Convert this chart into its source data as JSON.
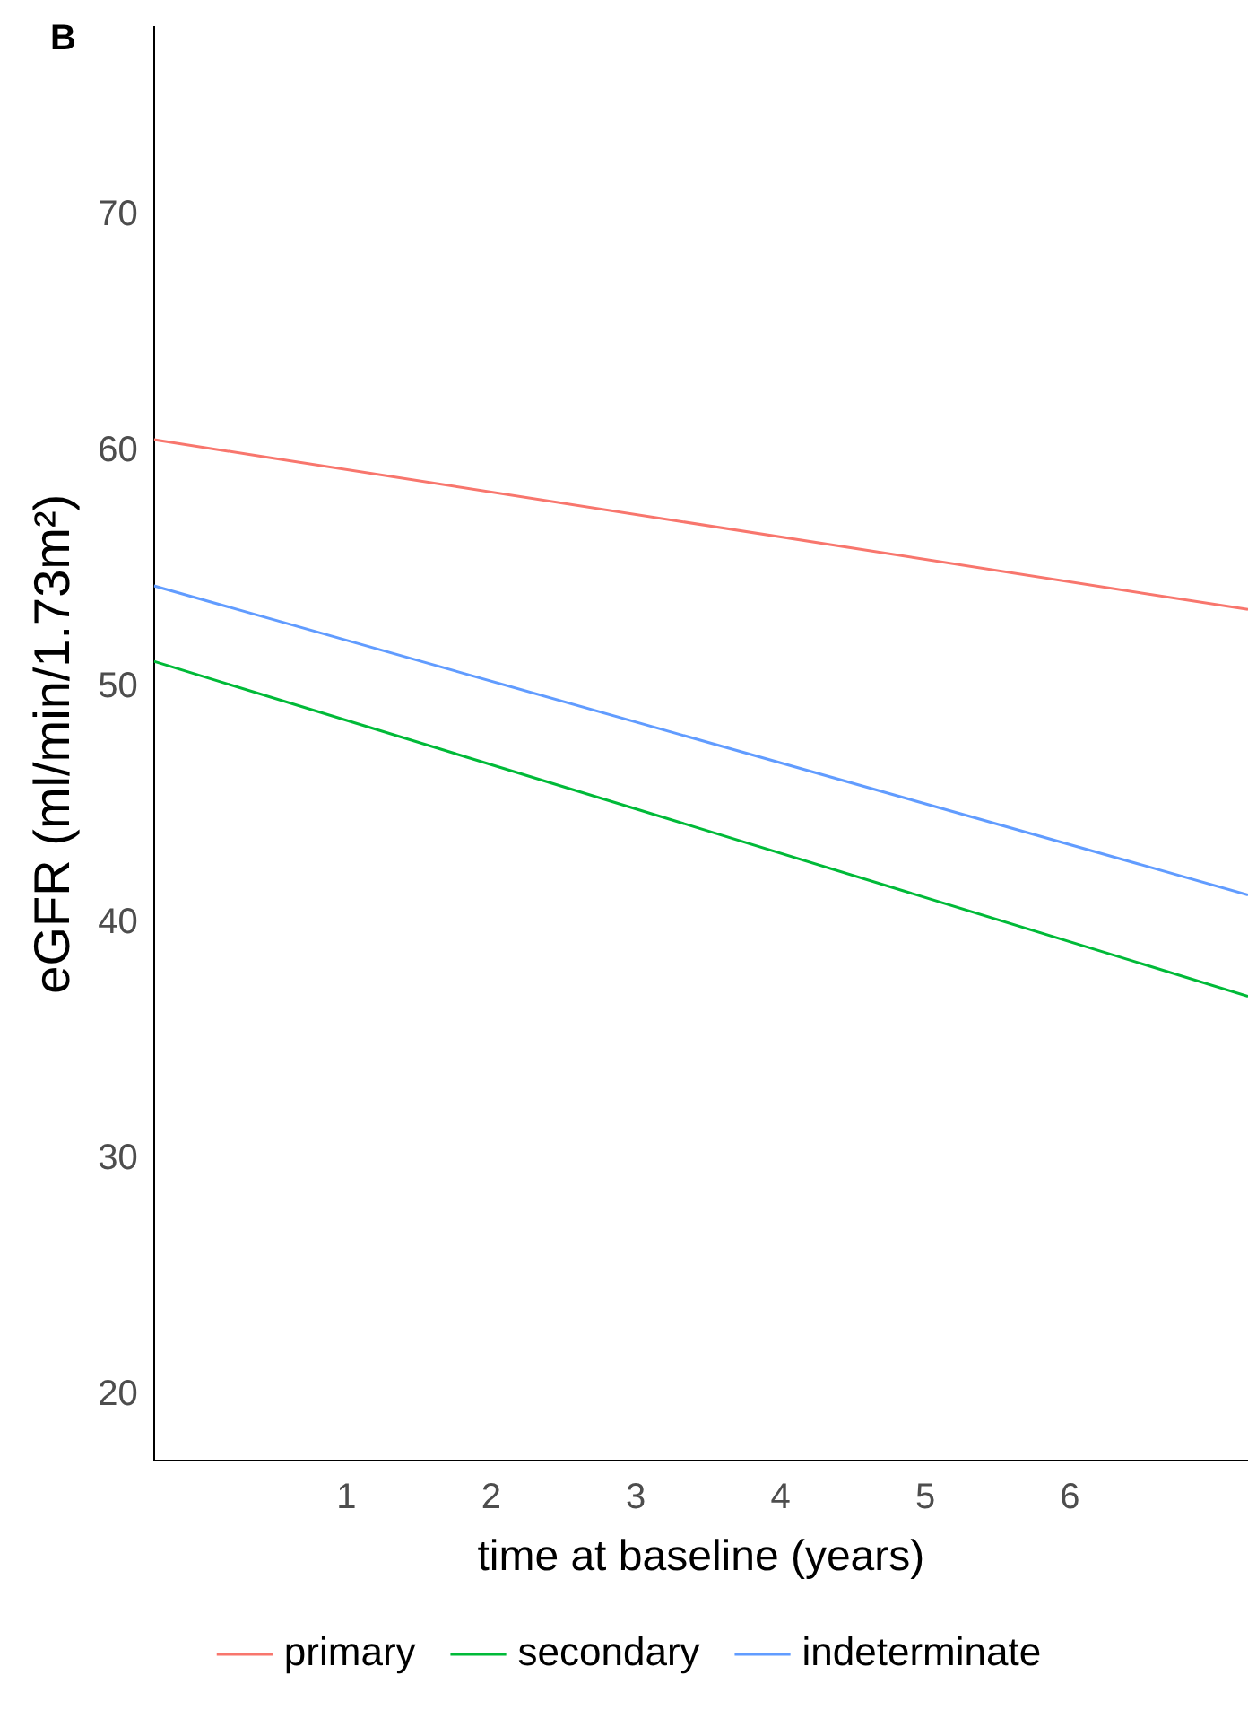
{
  "chart_data": {
    "type": "line",
    "xlabel": "time at baseline (years)",
    "ylabel": "eGFR (ml/min/1.73m²)",
    "annotations": [
      "B"
    ],
    "x": [
      -0.33,
      7.23
    ],
    "series": [
      {
        "name": "primary",
        "color": "#f8766d",
        "values": [
          60.5,
          53.3
        ]
      },
      {
        "name": "secondary",
        "color": "#00ba38",
        "values": [
          51.1,
          36.9
        ]
      },
      {
        "name": "indeterminate",
        "color": "#619cff",
        "values": [
          54.3,
          41.2
        ]
      }
    ],
    "xlim": [
      -0.33,
      7.23
    ],
    "xticks": [
      1,
      2,
      3,
      4,
      5,
      6
    ],
    "ylim": [
      17.2,
      78
    ],
    "yticks": [
      20,
      30,
      40,
      50,
      60,
      70
    ],
    "grid": false,
    "legend": "bottom",
    "marker": "none",
    "line_style": "solid"
  }
}
